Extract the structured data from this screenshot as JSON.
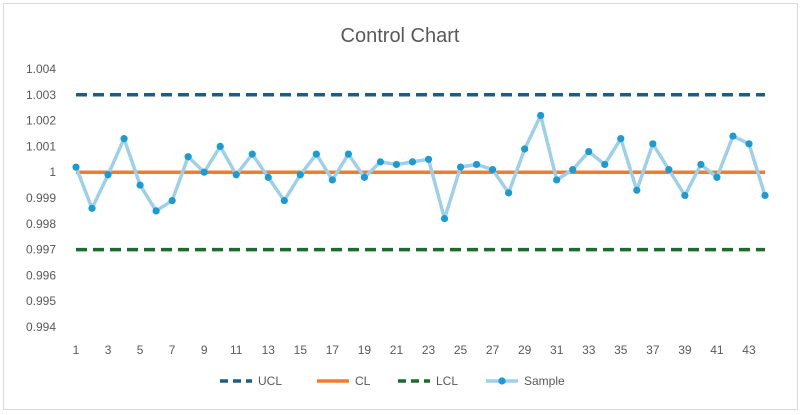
{
  "chart_data": {
    "type": "line",
    "title": "Control Chart",
    "xlabel": "",
    "ylabel": "",
    "x": [
      1,
      2,
      3,
      4,
      5,
      6,
      7,
      8,
      9,
      10,
      11,
      12,
      13,
      14,
      15,
      16,
      17,
      18,
      19,
      20,
      21,
      22,
      23,
      24,
      25,
      26,
      27,
      28,
      29,
      30,
      31,
      32,
      33,
      34,
      35,
      36,
      37,
      38,
      39,
      40,
      41,
      42,
      43,
      44
    ],
    "x_tick_labels": [
      "1",
      "3",
      "5",
      "7",
      "9",
      "11",
      "13",
      "15",
      "17",
      "19",
      "21",
      "23",
      "25",
      "27",
      "29",
      "31",
      "33",
      "35",
      "37",
      "39",
      "41",
      "43"
    ],
    "ylim": [
      0.994,
      1.004
    ],
    "y_tick_labels": [
      "1.004",
      "1.003",
      "1.002",
      "1.001",
      "1",
      "0.999",
      "0.998",
      "0.997",
      "0.996",
      "0.995",
      "0.994"
    ],
    "grid": false,
    "legend_position": "bottom",
    "series": [
      {
        "name": "UCL",
        "style": "dashed",
        "color": "#1f5c82",
        "values": [
          1.003,
          1.003,
          1.003,
          1.003,
          1.003,
          1.003,
          1.003,
          1.003,
          1.003,
          1.003,
          1.003,
          1.003,
          1.003,
          1.003,
          1.003,
          1.003,
          1.003,
          1.003,
          1.003,
          1.003,
          1.003,
          1.003,
          1.003,
          1.003,
          1.003,
          1.003,
          1.003,
          1.003,
          1.003,
          1.003,
          1.003,
          1.003,
          1.003,
          1.003,
          1.003,
          1.003,
          1.003,
          1.003,
          1.003,
          1.003,
          1.003,
          1.003,
          1.003,
          1.003
        ]
      },
      {
        "name": "CL",
        "style": "solid",
        "color": "#ed7d31",
        "values": [
          1,
          1,
          1,
          1,
          1,
          1,
          1,
          1,
          1,
          1,
          1,
          1,
          1,
          1,
          1,
          1,
          1,
          1,
          1,
          1,
          1,
          1,
          1,
          1,
          1,
          1,
          1,
          1,
          1,
          1,
          1,
          1,
          1,
          1,
          1,
          1,
          1,
          1,
          1,
          1,
          1,
          1,
          1,
          1
        ]
      },
      {
        "name": "LCL",
        "style": "dashed",
        "color": "#1e6b2e",
        "values": [
          0.997,
          0.997,
          0.997,
          0.997,
          0.997,
          0.997,
          0.997,
          0.997,
          0.997,
          0.997,
          0.997,
          0.997,
          0.997,
          0.997,
          0.997,
          0.997,
          0.997,
          0.997,
          0.997,
          0.997,
          0.997,
          0.997,
          0.997,
          0.997,
          0.997,
          0.997,
          0.997,
          0.997,
          0.997,
          0.997,
          0.997,
          0.997,
          0.997,
          0.997,
          0.997,
          0.997,
          0.997,
          0.997,
          0.997,
          0.997,
          0.997,
          0.997,
          0.997,
          0.997
        ]
      },
      {
        "name": "Sample",
        "style": "line-markers",
        "color": "#9fd0ea",
        "marker_color": "#1d9bd1",
        "values": [
          1.0002,
          0.9986,
          0.9999,
          1.0013,
          0.9995,
          0.9985,
          0.9989,
          1.0006,
          1.0,
          1.001,
          0.9999,
          1.0007,
          0.9998,
          0.9989,
          0.9999,
          1.0007,
          0.9997,
          1.0007,
          0.9998,
          1.0004,
          1.0003,
          1.0004,
          1.0005,
          0.9982,
          1.0002,
          1.0003,
          1.0001,
          0.9992,
          1.0009,
          1.0022,
          0.9997,
          1.0001,
          1.0008,
          1.0003,
          1.0013,
          0.9993,
          1.0011,
          1.0001,
          0.9991,
          1.0003,
          0.9998,
          1.0014,
          1.0011,
          0.9991
        ]
      }
    ]
  }
}
